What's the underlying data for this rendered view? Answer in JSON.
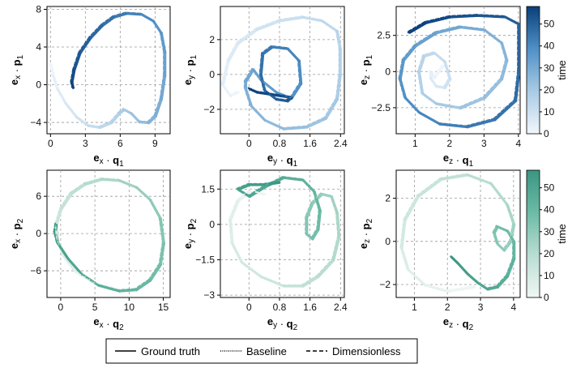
{
  "chart_data": [
    {
      "id": "p11",
      "type": "line",
      "row": 0,
      "col": 0,
      "colormap": "blues",
      "xlabel": {
        "vec": "e",
        "sub1": "x",
        "dot": "·",
        "var": "q",
        "sub2": "1"
      },
      "ylabel": {
        "vec": "e",
        "sub1": "x",
        "dot": "·",
        "var": "p",
        "sub2": "1"
      },
      "xlim": [
        -0.3,
        10.3
      ],
      "ylim": [
        -5.2,
        8.3
      ],
      "xticks": [
        0,
        3,
        6,
        9
      ],
      "yticks": [
        -4,
        0,
        4,
        8
      ],
      "trajectory": [
        [
          0.0,
          2.2
        ],
        [
          0.2,
          1.0
        ],
        [
          0.6,
          -0.5
        ],
        [
          1.3,
          -2.0
        ],
        [
          2.2,
          -3.4
        ],
        [
          3.2,
          -4.3
        ],
        [
          4.2,
          -4.5
        ],
        [
          5.2,
          -4.0
        ],
        [
          5.9,
          -3.0
        ],
        [
          6.3,
          -2.6
        ],
        [
          6.9,
          -3.0
        ],
        [
          7.6,
          -3.9
        ],
        [
          8.4,
          -4.0
        ],
        [
          9.0,
          -3.3
        ],
        [
          9.5,
          -1.5
        ],
        [
          9.8,
          1.0
        ],
        [
          9.8,
          3.5
        ],
        [
          9.5,
          5.5
        ],
        [
          8.8,
          6.8
        ],
        [
          7.8,
          7.5
        ],
        [
          6.5,
          7.6
        ],
        [
          5.4,
          7.2
        ],
        [
          4.4,
          6.3
        ],
        [
          3.4,
          5.0
        ],
        [
          2.5,
          3.4
        ],
        [
          2.0,
          1.6
        ],
        [
          1.8,
          0.3
        ],
        [
          1.9,
          -0.3
        ]
      ]
    },
    {
      "id": "p12",
      "type": "line",
      "row": 0,
      "col": 1,
      "colormap": "blues",
      "xlabel": {
        "vec": "e",
        "sub1": "y",
        "dot": "·",
        "var": "q",
        "sub2": "1"
      },
      "ylabel": {
        "vec": "e",
        "sub1": "y",
        "dot": "·",
        "var": "p",
        "sub2": "1"
      },
      "xlim": [
        -0.75,
        2.5
      ],
      "ylim": [
        -3.4,
        3.9
      ],
      "xticks": [
        0,
        0.8,
        1.6,
        2.4
      ],
      "yticks": [
        -2,
        0,
        2
      ],
      "trajectory": [
        [
          -0.3,
          -1.0
        ],
        [
          -0.5,
          -1.2
        ],
        [
          -0.7,
          -0.6
        ],
        [
          -0.55,
          0.8
        ],
        [
          -0.3,
          1.8
        ],
        [
          0.2,
          2.6
        ],
        [
          0.8,
          3.1
        ],
        [
          1.4,
          3.3
        ],
        [
          1.9,
          3.1
        ],
        [
          2.3,
          2.5
        ],
        [
          2.38,
          1.5
        ],
        [
          2.38,
          0.0
        ],
        [
          2.3,
          -1.4
        ],
        [
          2.0,
          -2.5
        ],
        [
          1.5,
          -3.0
        ],
        [
          0.9,
          -3.1
        ],
        [
          0.4,
          -2.6
        ],
        [
          0.05,
          -1.8
        ],
        [
          -0.1,
          -0.8
        ],
        [
          -0.1,
          -0.4
        ],
        [
          0.1,
          0.3
        ],
        [
          0.3,
          -0.3
        ],
        [
          0.7,
          -1.0
        ],
        [
          1.1,
          -1.35
        ],
        [
          1.35,
          -0.5
        ],
        [
          1.3,
          0.8
        ],
        [
          1.0,
          1.5
        ],
        [
          0.6,
          1.6
        ],
        [
          0.35,
          1.2
        ],
        [
          0.3,
          0.0
        ],
        [
          0.4,
          -0.9
        ],
        [
          0.7,
          -1.4
        ],
        [
          1.0,
          -1.5
        ],
        [
          1.1,
          -1.3
        ],
        [
          0.8,
          -1.2
        ],
        [
          0.2,
          -1.0
        ],
        [
          0.0,
          -0.8
        ]
      ]
    },
    {
      "id": "p13",
      "type": "line",
      "row": 0,
      "col": 2,
      "colormap": "blues",
      "xlabel": {
        "vec": "e",
        "sub1": "z",
        "dot": "·",
        "var": "q",
        "sub2": "1"
      },
      "ylabel": {
        "vec": "e",
        "sub1": "z",
        "dot": "·",
        "var": "p",
        "sub2": "1"
      },
      "xlim": [
        0.45,
        4.05
      ],
      "ylim": [
        -4.3,
        4.5
      ],
      "xticks": [
        1,
        2,
        3,
        4
      ],
      "yticks": [
        -2.5,
        0,
        2.5
      ],
      "trajectory": [
        [
          1.8,
          0.4
        ],
        [
          1.55,
          -0.4
        ],
        [
          1.45,
          0.0
        ],
        [
          1.45,
          -0.5
        ],
        [
          1.6,
          -1.0
        ],
        [
          1.85,
          -1.1
        ],
        [
          2.0,
          -0.5
        ],
        [
          1.85,
          0.7
        ],
        [
          1.55,
          1.3
        ],
        [
          1.25,
          1.1
        ],
        [
          1.1,
          0.0
        ],
        [
          1.2,
          -1.5
        ],
        [
          1.6,
          -2.2
        ],
        [
          2.3,
          -2.5
        ],
        [
          3.0,
          -1.8
        ],
        [
          3.5,
          -0.5
        ],
        [
          3.65,
          0.8
        ],
        [
          3.5,
          2.0
        ],
        [
          3.0,
          2.9
        ],
        [
          2.3,
          3.1
        ],
        [
          1.6,
          2.7
        ],
        [
          1.0,
          1.8
        ],
        [
          0.65,
          0.8
        ],
        [
          0.55,
          -0.5
        ],
        [
          0.7,
          -1.8
        ],
        [
          1.1,
          -2.8
        ],
        [
          1.7,
          -3.6
        ],
        [
          2.5,
          -3.8
        ],
        [
          3.3,
          -3.3
        ],
        [
          3.9,
          -2.0
        ],
        [
          4.0,
          0.0
        ],
        [
          4.0,
          3.3
        ],
        [
          3.6,
          3.8
        ],
        [
          2.8,
          3.9
        ],
        [
          2.0,
          3.8
        ],
        [
          1.3,
          3.4
        ],
        [
          0.8,
          2.7
        ]
      ]
    },
    {
      "id": "p21",
      "type": "line",
      "row": 1,
      "col": 0,
      "colormap": "greens",
      "xlabel": {
        "vec": "e",
        "sub1": "x",
        "dot": "·",
        "var": "q",
        "sub2": "2"
      },
      "ylabel": {
        "vec": "e",
        "sub1": "x",
        "dot": "·",
        "var": "p",
        "sub2": "2"
      },
      "xlim": [
        -2.0,
        16.0
      ],
      "ylim": [
        -10.3,
        10.2
      ],
      "xticks": [
        0,
        5,
        10,
        15
      ],
      "yticks": [
        -6,
        0,
        6
      ],
      "trajectory": [
        [
          8.5,
          -9.0
        ],
        [
          5.0,
          -8.0
        ],
        [
          2.0,
          -6.0
        ],
        [
          0.3,
          -3.5
        ],
        [
          -0.5,
          -1.0
        ],
        [
          -0.7,
          1.5
        ],
        [
          0.0,
          4.0
        ],
        [
          1.5,
          6.5
        ],
        [
          3.5,
          8.0
        ],
        [
          6.0,
          8.8
        ],
        [
          8.5,
          8.6
        ],
        [
          11.0,
          7.5
        ],
        [
          13.0,
          5.5
        ],
        [
          14.5,
          2.5
        ],
        [
          15.0,
          -1.5
        ],
        [
          14.5,
          -5.0
        ],
        [
          13.0,
          -7.5
        ],
        [
          11.0,
          -9.0
        ],
        [
          8.5,
          -9.2
        ],
        [
          5.5,
          -8.3
        ],
        [
          3.0,
          -6.5
        ],
        [
          1.0,
          -4.0
        ],
        [
          -0.5,
          -1.5
        ],
        [
          -0.9,
          0.2
        ],
        [
          -0.7,
          1.6
        ]
      ]
    },
    {
      "id": "p22",
      "type": "line",
      "row": 1,
      "col": 1,
      "colormap": "greens",
      "xlabel": {
        "vec": "e",
        "sub1": "y",
        "dot": "·",
        "var": "q",
        "sub2": "2"
      },
      "ylabel": {
        "vec": "e",
        "sub1": "y",
        "dot": "·",
        "var": "p",
        "sub2": "2"
      },
      "xlim": [
        -0.75,
        2.5
      ],
      "ylim": [
        -3.1,
        2.3
      ],
      "xticks": [
        0,
        0.8,
        1.6,
        2.4
      ],
      "yticks": [
        -3,
        -1.5,
        0,
        1.5
      ],
      "trajectory": [
        [
          0.4,
          1.3
        ],
        [
          0.0,
          1.4
        ],
        [
          -0.3,
          1.0
        ],
        [
          -0.5,
          0.2
        ],
        [
          -0.45,
          -0.8
        ],
        [
          -0.2,
          -1.6
        ],
        [
          0.3,
          -2.2
        ],
        [
          0.9,
          -2.6
        ],
        [
          1.4,
          -2.6
        ],
        [
          1.8,
          -2.2
        ],
        [
          2.2,
          -1.5
        ],
        [
          2.35,
          -0.5
        ],
        [
          2.3,
          0.5
        ],
        [
          2.15,
          1.2
        ],
        [
          1.9,
          1.3
        ],
        [
          1.65,
          0.9
        ],
        [
          1.5,
          0.3
        ],
        [
          1.5,
          -0.4
        ],
        [
          1.65,
          -0.6
        ],
        [
          1.8,
          -0.2
        ],
        [
          1.85,
          0.6
        ],
        [
          1.7,
          1.4
        ],
        [
          1.4,
          1.9
        ],
        [
          0.9,
          2.0
        ],
        [
          0.4,
          1.6
        ],
        [
          0.0,
          1.2
        ],
        [
          -0.3,
          1.5
        ],
        [
          0.0,
          1.7
        ],
        [
          0.4,
          1.7
        ],
        [
          0.8,
          1.8
        ]
      ]
    },
    {
      "id": "p23",
      "type": "line",
      "row": 1,
      "col": 2,
      "colormap": "greens",
      "xlabel": {
        "vec": "e",
        "sub1": "z",
        "dot": "·",
        "var": "q",
        "sub2": "2"
      },
      "ylabel": {
        "vec": "e",
        "sub1": "z",
        "dot": "·",
        "var": "p",
        "sub2": "2"
      },
      "xlim": [
        0.45,
        4.2
      ],
      "ylim": [
        -2.6,
        3.3
      ],
      "xticks": [
        1,
        2,
        3,
        4
      ],
      "yticks": [
        -2,
        0,
        2
      ],
      "trajectory": [
        [
          2.8,
          -2.1
        ],
        [
          2.0,
          -2.3
        ],
        [
          1.3,
          -2.0
        ],
        [
          0.8,
          -1.3
        ],
        [
          0.6,
          -0.3
        ],
        [
          0.7,
          1.0
        ],
        [
          1.1,
          2.1
        ],
        [
          1.8,
          2.9
        ],
        [
          2.6,
          3.1
        ],
        [
          3.3,
          2.7
        ],
        [
          3.8,
          1.7
        ],
        [
          4.0,
          0.8
        ],
        [
          3.9,
          0.0
        ],
        [
          3.7,
          -0.4
        ],
        [
          3.5,
          -0.1
        ],
        [
          3.4,
          0.4
        ],
        [
          3.5,
          0.7
        ],
        [
          3.8,
          0.5
        ],
        [
          4.0,
          0.0
        ],
        [
          4.0,
          -0.8
        ],
        [
          3.8,
          -1.6
        ],
        [
          3.5,
          -2.1
        ],
        [
          3.2,
          -2.2
        ],
        [
          2.9,
          -1.9
        ],
        [
          2.6,
          -1.5
        ],
        [
          2.3,
          -1.0
        ],
        [
          2.1,
          -0.7
        ]
      ]
    }
  ],
  "colorbars": [
    {
      "id": "cb-blues",
      "row": 0,
      "colormap": "blues",
      "label": "time",
      "range": [
        0,
        58
      ],
      "ticks": [
        0,
        10,
        20,
        30,
        40,
        50
      ]
    },
    {
      "id": "cb-greens",
      "row": 1,
      "colormap": "greens",
      "label": "time",
      "range": [
        0,
        58
      ],
      "ticks": [
        0,
        10,
        20,
        30,
        40,
        50
      ]
    }
  ],
  "colors": {
    "blues": [
      "#f2f7fc",
      "#a9cbe5",
      "#4f90c6",
      "#0a3f7a"
    ],
    "greens": [
      "#f0f7f5",
      "#b9ddd2",
      "#6cbba6",
      "#3a9682"
    ]
  },
  "legend": {
    "placement": "bottom-center",
    "items": [
      {
        "label": "Ground truth",
        "style": "solid"
      },
      {
        "label": "Baseline",
        "style": "dotted"
      },
      {
        "label": "Dimensionless",
        "style": "dashed"
      }
    ]
  }
}
